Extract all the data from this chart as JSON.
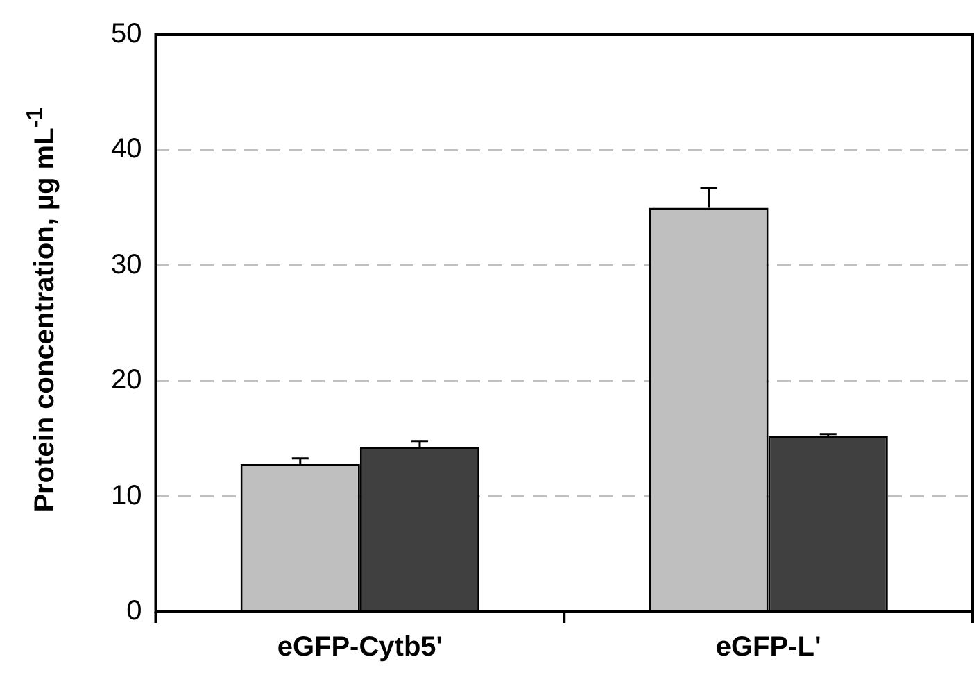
{
  "chart_data": {
    "type": "bar",
    "ylabel": "Protein concentration, µg mL$^{-1}$",
    "categories": [
      "eGFP-Cytb5'",
      "eGFP-L'"
    ],
    "series": [
      {
        "color": "#bfbfbf",
        "values": [
          12.8,
          35.0
        ],
        "errors": [
          [
            12.8,
            13.3
          ],
          [
            35.0,
            36.7
          ]
        ]
      },
      {
        "color": "#404040",
        "values": [
          14.3,
          15.2
        ],
        "errors": [
          [
            14.3,
            14.8
          ],
          [
            15.2,
            15.4
          ]
        ]
      }
    ],
    "ylim": [
      0,
      50
    ],
    "yticks": [
      0,
      10,
      20,
      30,
      40,
      50
    ],
    "grid": "y",
    "legend": false
  }
}
